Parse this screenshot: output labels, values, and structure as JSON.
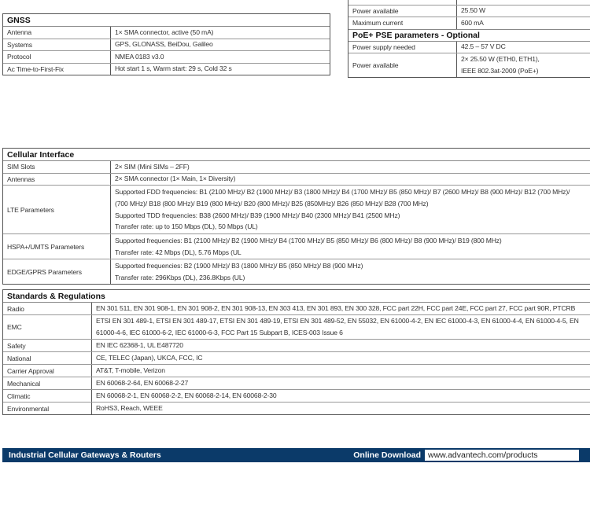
{
  "power_top": {
    "rows": [
      {
        "k": "",
        "v": [
          ""
        ]
      },
      {
        "k": "Power available",
        "v": [
          "25.50 W"
        ]
      },
      {
        "k": "Maximum current",
        "v": [
          "600 mA"
        ]
      }
    ]
  },
  "poe_pse": {
    "title": "PoE+ PSE parameters - Optional",
    "rows": [
      {
        "k": "Power supply needed",
        "v": [
          "42.5 – 57 V DC"
        ]
      },
      {
        "k": "Power available",
        "v": [
          "2× 25.50 W (ETH0, ETH1),",
          "IEEE 802.3at-2009 (PoE+)"
        ]
      }
    ]
  },
  "gnss": {
    "title": "GNSS",
    "rows": [
      {
        "k": "Antenna",
        "v": [
          "1× SMA connector, active (50 mA)"
        ]
      },
      {
        "k": "Systems",
        "v": [
          "GPS, GLONASS, BeiDou, Galileo"
        ]
      },
      {
        "k": "Protocol",
        "v": [
          "NMEA 0183 v3.0"
        ]
      },
      {
        "k": "Ac Time-to-First-Fix",
        "v": [
          "Hot start 1 s, Warm start: 29 s, Cold 32 s"
        ]
      }
    ]
  },
  "cellular": {
    "title": "Cellular Interface",
    "rows": [
      {
        "k": "SIM Slots",
        "v": [
          "2× SIM (Mini SIMs – 2FF)"
        ]
      },
      {
        "k": "Antennas",
        "v": [
          "2× SMA connector (1× Main, 1× Diversity)"
        ]
      },
      {
        "k": "LTE Parameters",
        "v": [
          "Supported FDD frequencies: B1 (2100 MHz)/ B2 (1900 MHz)/ B3 (1800 MHz)/ B4 (1700 MHz)/ B5 (850 MHz)/ B7 (2600 MHz)/ B8 (900 MHz)/ B12 (700 MHz)/",
          "(700 MHz)/ B18 (800 MHz)/ B19 (800 MHz)/ B20 (800 MHz)/ B25 (850MHz)/ B26 (850 MHz)/ B28 (700 MHz)",
          "Supported TDD frequencies: B38 (2600 MHz)/ B39 (1900 MHz)/ B40 (2300 MHz)/ B41 (2500 MHz)",
          "Transfer rate: up to 150 Mbps (DL), 50 Mbps (UL)"
        ]
      },
      {
        "k": "HSPA+/UMTS Parameters",
        "v": [
          "Supported frequencies: B1 (2100 MHz)/ B2 (1900 MHz)/ B4 (1700 MHz)/ B5 (850 MHz)/ B6 (800 MHz)/ B8 (900 MHz)/ B19 (800 MHz)",
          "Transfer rate: 42 Mbps (DL), 5.76 Mbps (UL"
        ]
      },
      {
        "k": "EDGE/GPRS Parameters",
        "v": [
          "Supported frequencies: B2 (1900 MHz)/ B3 (1800 MHz)/ B5 (850 MHz)/ B8 (900 MHz)",
          "Transfer rate: 296Kbps (DL), 236.8Kbps (UL)"
        ]
      }
    ]
  },
  "standards": {
    "title": "Standards & Regulations",
    "rows": [
      {
        "k": "Radio",
        "v": [
          "EN 301 511, EN 301 908-1, EN 301 908-2, EN 301 908-13, EN 303 413, EN 301 893, EN 300 328, FCC part 22H, FCC part 24E, FCC part 27, FCC part 90R, PTCRB"
        ]
      },
      {
        "k": "EMC",
        "v": [
          "ETSI EN 301 489-1, ETSI EN 301 489-17, ETSI EN 301 489-19, ETSI EN 301 489-52, EN 55032, EN 61000-4-2, EN IEC 61000-4-3, EN 61000-4-4, EN 61000-4-5, EN",
          "61000-4-6, IEC 61000-6-2, IEC 61000-6-3, FCC Part 15 Subpart B, ICES-003 Issue 6"
        ]
      },
      {
        "k": "Safety",
        "v": [
          "EN IEC 62368-1, UL E487720"
        ]
      },
      {
        "k": "National",
        "v": [
          "CE, TELEC (Japan), UKCA, FCC, IC"
        ]
      },
      {
        "k": "Carrier Approval",
        "v": [
          "AT&T, T-mobile, Verizon"
        ]
      },
      {
        "k": "Mechanical",
        "v": [
          "EN 60068-2-64, EN 60068-2-27"
        ]
      },
      {
        "k": "Climatic",
        "v": [
          "EN 60068-2-1, EN 60068-2-2, EN 60068-2-14, EN 60068-2-30"
        ]
      },
      {
        "k": "Environmental",
        "v": [
          "RoHS3, Reach, WEEE"
        ]
      }
    ]
  },
  "footer": {
    "title": "Industrial Cellular Gateways & Routers",
    "download_label": "Online Download",
    "url": "www.advantech.com/products"
  },
  "colors": {
    "footer_bg": "#0b3a69"
  }
}
